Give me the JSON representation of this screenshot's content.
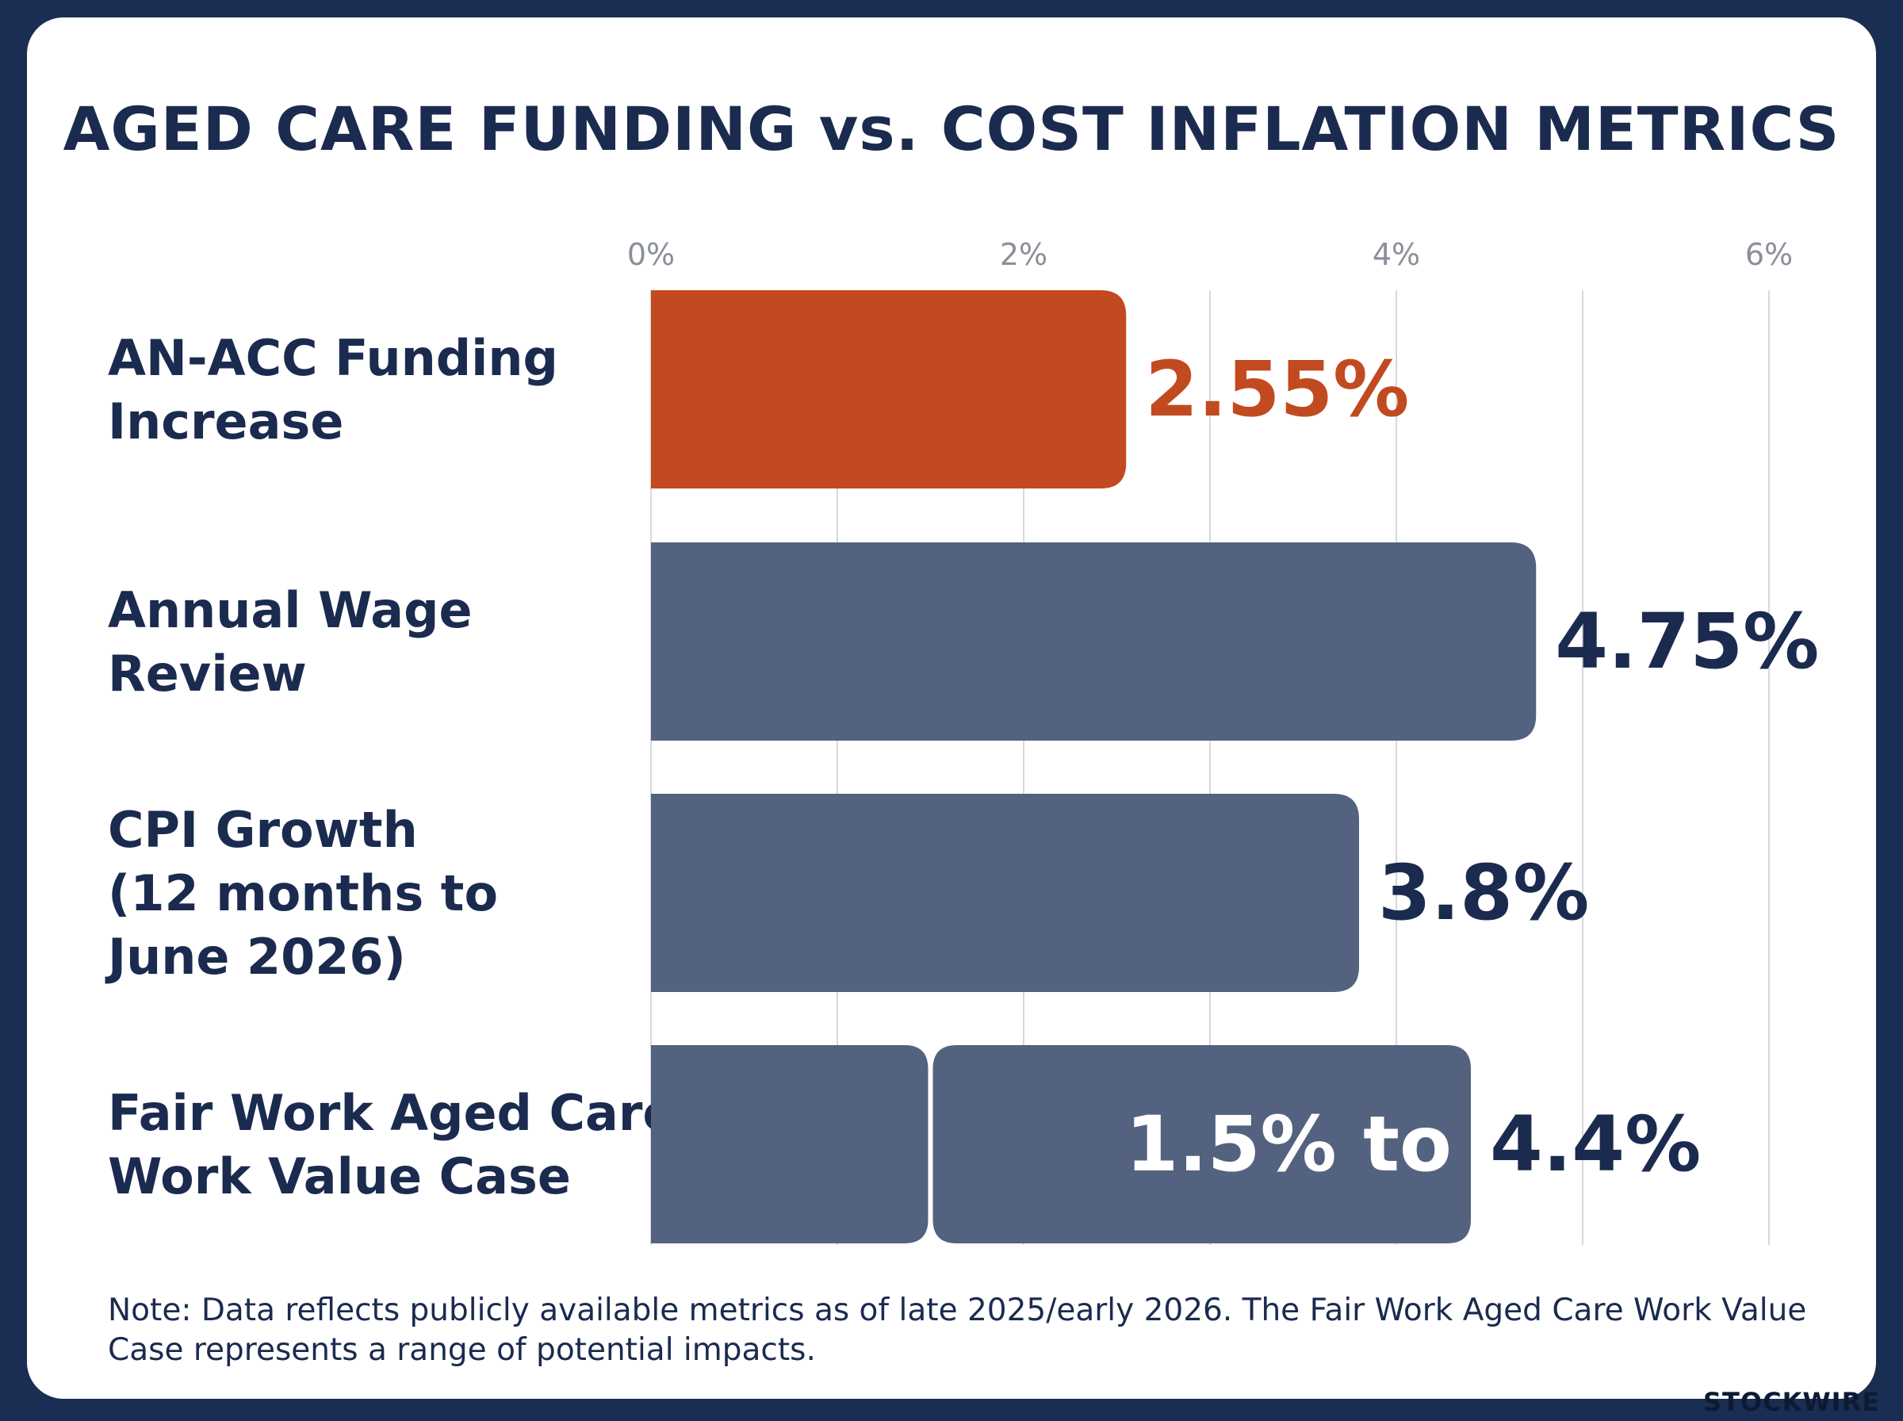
{
  "chart_data": {
    "type": "bar",
    "orientation": "horizontal",
    "title": "AGED CARE FUNDING vs. COST INFLATION METRICS",
    "x_ticks": [
      "0%",
      "2%",
      "4%",
      "6%"
    ],
    "xlim": [
      0,
      6
    ],
    "grid": true,
    "categories": [
      [
        "AN-ACC Funding",
        "Increase"
      ],
      [
        "Annual Wage",
        "Review"
      ],
      [
        "CPI Growth",
        "(12 months to",
        "June 2026)"
      ],
      [
        "Fair Work Aged Care",
        "Work Value Case"
      ]
    ],
    "bars": [
      {
        "value": 2.55,
        "label": "2.55%",
        "color": "#c24a20"
      },
      {
        "value": 4.75,
        "label": "4.75%",
        "color": "#53627f"
      },
      {
        "value": 3.8,
        "label": "3.8%",
        "color": "#53627f"
      },
      {
        "range": [
          1.5,
          4.4
        ],
        "label_low": "1.5% to",
        "label_high": "4.4%",
        "color": "#53627f"
      }
    ]
  },
  "note": "Note: Data reflects publicly available metrics as of late 2025/early 2026. The Fair Work Aged Care Work Value Case represents a range of potential impacts.",
  "brand": "STOCKWIRE",
  "colors": {
    "accent": "#c24a20",
    "bar": "#53627f",
    "text": "#1b2b4f",
    "frame": "#1a2d52"
  }
}
